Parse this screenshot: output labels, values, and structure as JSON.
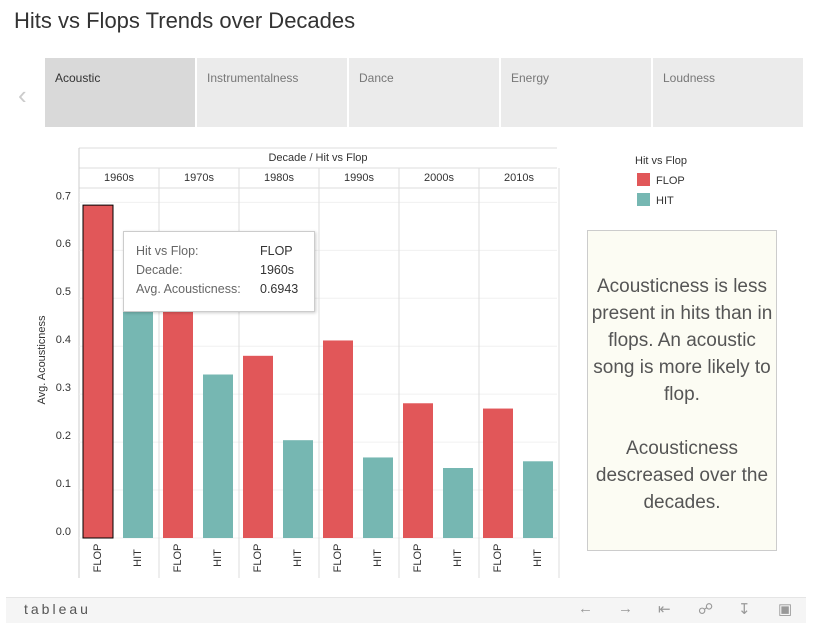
{
  "title": "Hits vs Flops Trends over Decades",
  "tabs": [
    "Acoustic",
    "Instrumentalness",
    "Dance",
    "Energy",
    "Loudness"
  ],
  "chart_data": {
    "type": "bar",
    "header": "Decade / Hit vs Flop",
    "y_label": "Avg. Acousticness",
    "legend_title": "Hit vs Flop",
    "categories": [
      "1960s",
      "1970s",
      "1980s",
      "1990s",
      "2000s",
      "2010s"
    ],
    "series": [
      {
        "name": "FLOP",
        "color": "#e15759",
        "values": [
          0.6943,
          0.55,
          0.38,
          0.412,
          0.281,
          0.27
        ]
      },
      {
        "name": "HIT",
        "color": "#76b7b2",
        "values": [
          0.52,
          0.341,
          0.204,
          0.168,
          0.146,
          0.16
        ]
      }
    ],
    "ylim": [
      0,
      0.73
    ],
    "yticks": [
      {
        "value": 0,
        "label": "0.0"
      },
      0.1,
      0.2,
      0.3,
      0.4,
      0.5,
      0.6,
      0.7
    ],
    "grid": true
  },
  "tooltip": {
    "labels": [
      "Hit vs Flop:",
      "Decade:",
      "Avg. Acousticness:"
    ]
  },
  "annotation": [
    "Acousticness is less present in hits than in flops. An acoustic song is more likely to flop.",
    "Acousticness descreased over the decades."
  ],
  "footer": {
    "logo": "tableau"
  }
}
